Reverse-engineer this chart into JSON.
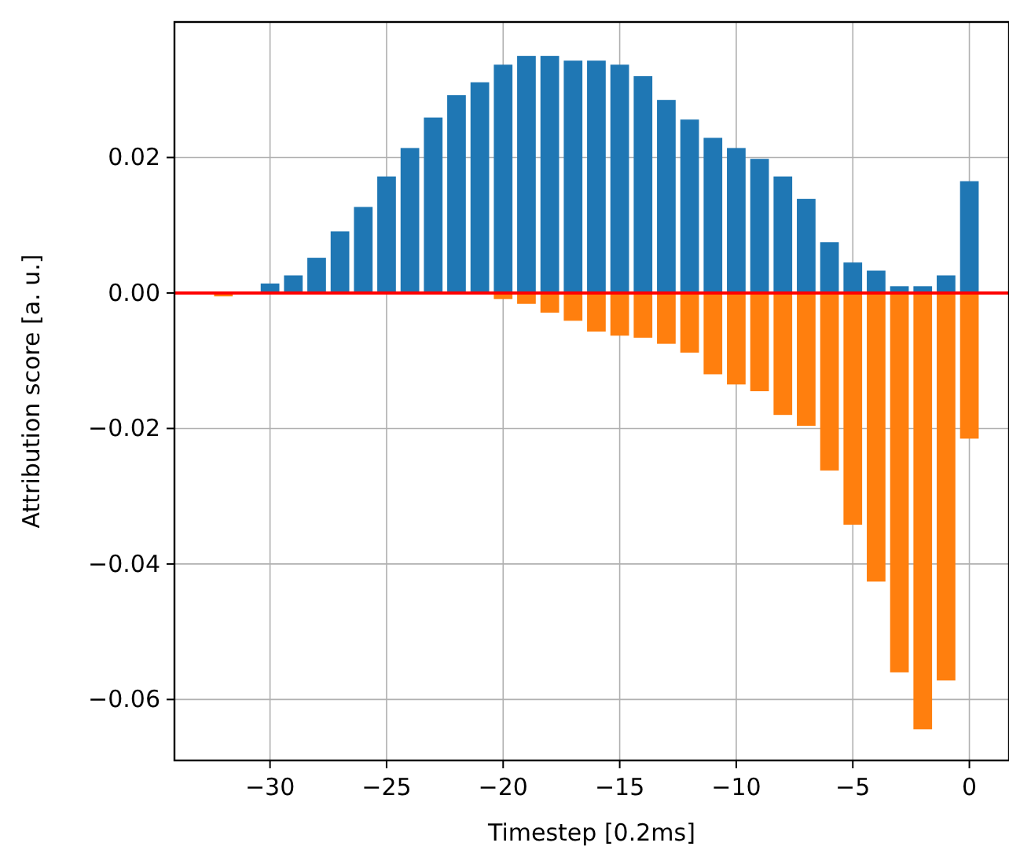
{
  "chart_data": {
    "type": "bar",
    "xlabel": "Timestep [0.2ms]",
    "ylabel": "Attribution score [a. u.]",
    "x": [
      -32,
      -31,
      -30,
      -29,
      -28,
      -27,
      -26,
      -25,
      -24,
      -23,
      -22,
      -21,
      -20,
      -19,
      -18,
      -17,
      -16,
      -15,
      -14,
      -13,
      -12,
      -11,
      -10,
      -9,
      -8,
      -7,
      -6,
      -5,
      -4,
      -3,
      -2,
      -1,
      0
    ],
    "series": [
      {
        "color": "#1f77b4",
        "values": [
          0,
          0,
          0.0014,
          0.0026,
          0.0052,
          0.0091,
          0.0127,
          0.0172,
          0.0214,
          0.0259,
          0.0292,
          0.0311,
          0.0337,
          0.035,
          0.035,
          0.0343,
          0.0343,
          0.0337,
          0.032,
          0.0285,
          0.0256,
          0.0229,
          0.0214,
          0.0198,
          0.0172,
          0.0139,
          0.0075,
          0.0045,
          0.0033,
          0.001,
          0.001,
          0.0026,
          0.0165
        ]
      },
      {
        "color": "#ff7f0e",
        "values": [
          -0.0005,
          0,
          0,
          0,
          0,
          0,
          0,
          0,
          0,
          0,
          0,
          0,
          -0.0009,
          -0.0016,
          -0.0029,
          -0.0041,
          -0.0057,
          -0.0063,
          -0.0066,
          -0.0075,
          -0.0088,
          -0.012,
          -0.0135,
          -0.0145,
          -0.018,
          -0.0196,
          -0.0262,
          -0.0342,
          -0.0426,
          -0.056,
          -0.0644,
          -0.0572,
          -0.0215
        ]
      }
    ],
    "xlim": [
      -34.1,
      1.7
    ],
    "ylim": [
      -0.069,
      0.04
    ],
    "xticks": [
      {
        "value": -30,
        "label": "−30"
      },
      {
        "value": -25,
        "label": "−25"
      },
      {
        "value": -20,
        "label": "−20"
      },
      {
        "value": -15,
        "label": "−15"
      },
      {
        "value": -10,
        "label": "−10"
      },
      {
        "value": -5,
        "label": "−5"
      },
      0
    ],
    "yticks": [
      {
        "value": -0.06,
        "label": "−0.06"
      },
      {
        "value": -0.04,
        "label": "−0.04"
      },
      {
        "value": -0.02,
        "label": "−0.02"
      },
      {
        "value": 0,
        "label": "0.00"
      },
      {
        "value": 0.02,
        "label": "0.02"
      }
    ],
    "ref_lines": [
      {
        "axis": "y",
        "value": 0,
        "color": "#ff0000"
      }
    ],
    "grid": true,
    "stacked": true
  }
}
